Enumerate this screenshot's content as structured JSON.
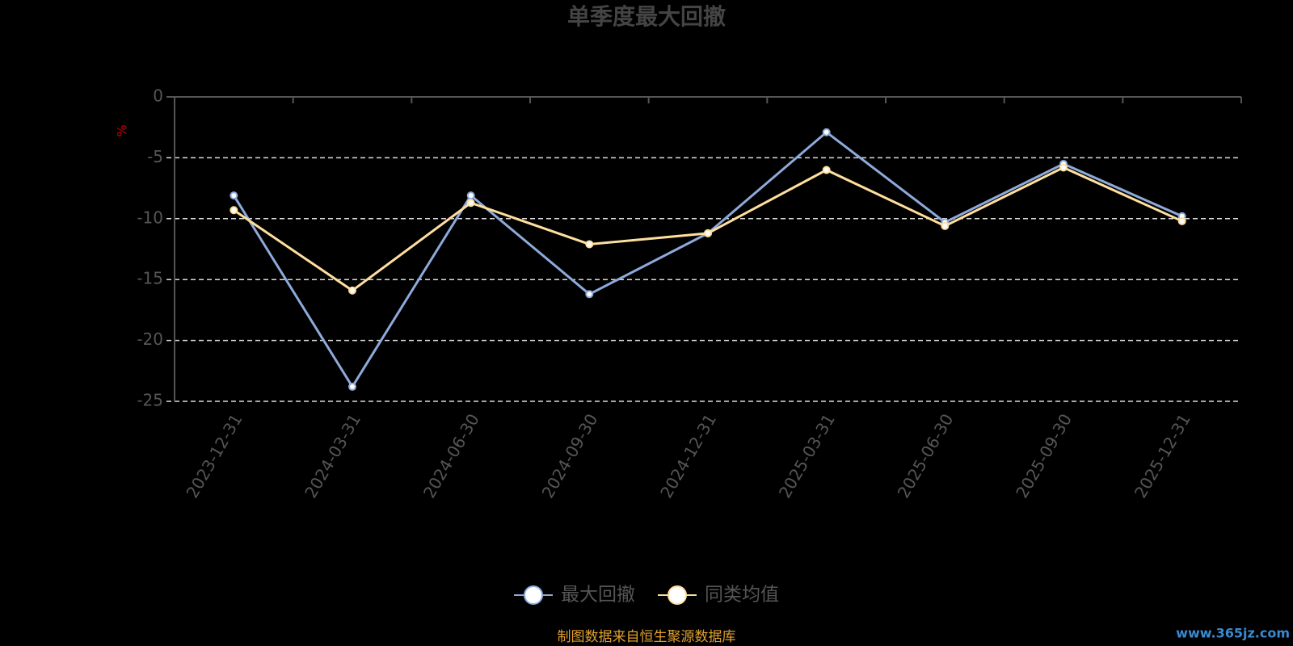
{
  "chart_data": {
    "type": "line",
    "title": "单季度最大回撤",
    "y_label": "%",
    "categories": [
      "2023-12-31",
      "2024-03-31",
      "2024-06-30",
      "2024-09-30",
      "2024-12-31",
      "2025-03-31",
      "2025-06-30",
      "2025-09-30",
      "2025-12-31"
    ],
    "series": [
      {
        "name": "最大回撤",
        "color": "#8eaadb",
        "values": [
          -8.1,
          -23.8,
          -8.1,
          -16.2,
          -11.2,
          -2.9,
          -10.3,
          -5.5,
          -9.8
        ]
      },
      {
        "name": "同类均值",
        "color": "#ffdf9e",
        "values": [
          -9.3,
          -15.9,
          -8.7,
          -12.1,
          -11.2,
          -6.0,
          -10.6,
          -5.8,
          -10.2
        ]
      }
    ],
    "ylim": [
      -25,
      0
    ],
    "yticks": [
      0,
      -5,
      -10,
      -15,
      -20,
      -25
    ],
    "grid": true,
    "source": "制图数据来自恒生聚源数据库",
    "watermark": "www.365jz.com"
  }
}
